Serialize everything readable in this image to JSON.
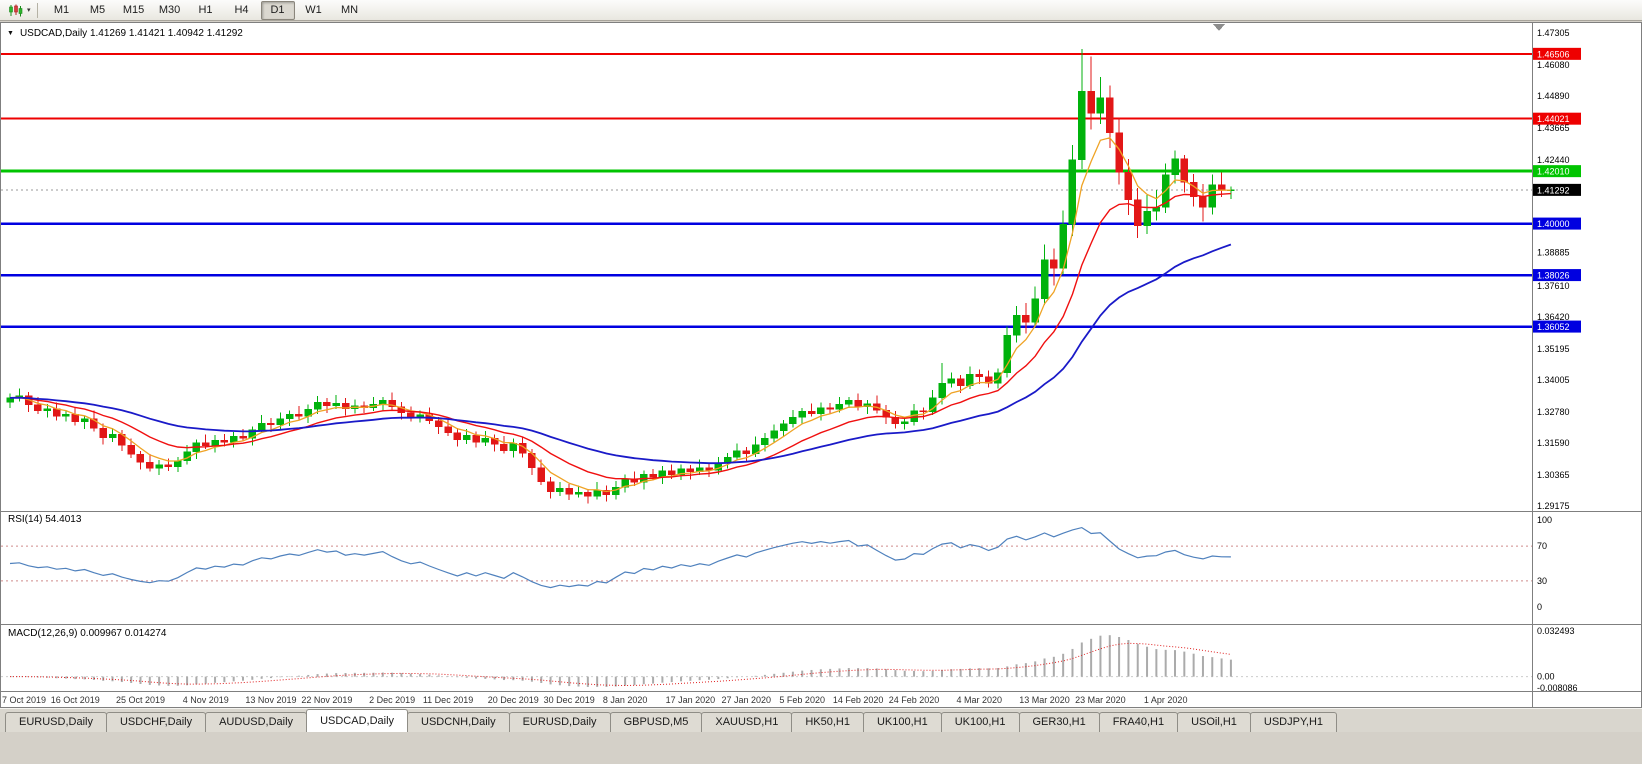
{
  "toolbar": {
    "timeframes": [
      {
        "label": "M1",
        "active": false
      },
      {
        "label": "M5",
        "active": false
      },
      {
        "label": "M15",
        "active": false
      },
      {
        "label": "M30",
        "active": false
      },
      {
        "label": "H1",
        "active": false
      },
      {
        "label": "H4",
        "active": false
      },
      {
        "label": "D1",
        "active": true
      },
      {
        "label": "W1",
        "active": false
      },
      {
        "label": "MN",
        "active": false
      }
    ]
  },
  "tabs": [
    {
      "label": "EURUSD,Daily",
      "active": false
    },
    {
      "label": "USDCHF,Daily",
      "active": false
    },
    {
      "label": "AUDUSD,Daily",
      "active": false
    },
    {
      "label": "USDCAD,Daily",
      "active": true
    },
    {
      "label": "USDCNH,Daily",
      "active": false
    },
    {
      "label": "EURUSD,Daily",
      "active": false
    },
    {
      "label": "GBPUSD,M5",
      "active": false
    },
    {
      "label": "XAUUSD,H1",
      "active": false
    },
    {
      "label": "HK50,H1",
      "active": false
    },
    {
      "label": "UK100,H1",
      "active": false
    },
    {
      "label": "UK100,H1",
      "active": false
    },
    {
      "label": "GER30,H1",
      "active": false
    },
    {
      "label": "FRA40,H1",
      "active": false
    },
    {
      "label": "USOil,H1",
      "active": false
    },
    {
      "label": "USDJPY,H1",
      "active": false
    }
  ],
  "chart_data": {
    "type": "candlestick",
    "symbol": "USDCAD",
    "period": "Daily",
    "header": "USDCAD,Daily  1.41269 1.41421 1.40942 1.41292",
    "last_bar": {
      "open": "1.41269",
      "high": "1.41421",
      "low": "1.40942",
      "close": "1.41292"
    },
    "current_price": {
      "value": 1.41292,
      "text": "1.41292"
    },
    "y_axis": {
      "visible_max": 1.4756,
      "visible_min": 1.2898,
      "labels": [
        {
          "text": "1.47305",
          "type": "plain"
        },
        {
          "text": "1.46506",
          "type": "red"
        },
        {
          "text": "1.46080",
          "type": "plain"
        },
        {
          "text": "1.44890",
          "type": "plain"
        },
        {
          "text": "1.44021",
          "type": "red"
        },
        {
          "text": "1.43665",
          "type": "plain"
        },
        {
          "text": "1.42440",
          "type": "plain"
        },
        {
          "text": "1.42010",
          "type": "green"
        },
        {
          "text": "1.41292",
          "type": "black"
        },
        {
          "text": "1.40000",
          "type": "blue"
        },
        {
          "text": "1.38885",
          "type": "plain"
        },
        {
          "text": "1.38026",
          "type": "blue"
        },
        {
          "text": "1.37610",
          "type": "plain"
        },
        {
          "text": "1.36420",
          "type": "plain"
        },
        {
          "text": "1.36052",
          "type": "blue"
        },
        {
          "text": "1.35195",
          "type": "plain"
        },
        {
          "text": "1.34005",
          "type": "plain"
        },
        {
          "text": "1.32780",
          "type": "plain"
        },
        {
          "text": "1.31590",
          "type": "plain"
        },
        {
          "text": "1.30365",
          "type": "plain"
        },
        {
          "text": "1.29175",
          "type": "plain"
        }
      ]
    },
    "horizontal_lines": [
      {
        "price": 1.46506,
        "color_key": "red",
        "width": 2
      },
      {
        "price": 1.44021,
        "color_key": "red",
        "width": 2
      },
      {
        "price": 1.4201,
        "color_key": "green",
        "width": 3
      },
      {
        "price": 1.4,
        "color_key": "blue",
        "width": 2.5
      },
      {
        "price": 1.38026,
        "color_key": "blue",
        "width": 2.5
      },
      {
        "price": 1.36052,
        "color_key": "blue",
        "width": 2.5
      }
    ],
    "x_labels": [
      {
        "index": 0,
        "label": "7 Oct 2019"
      },
      {
        "index": 7,
        "label": "16 Oct 2019"
      },
      {
        "index": 14,
        "label": "25 Oct 2019"
      },
      {
        "index": 21,
        "label": "4 Nov 2019"
      },
      {
        "index": 28,
        "label": "13 Nov 2019"
      },
      {
        "index": 34,
        "label": "22 Nov 2019"
      },
      {
        "index": 41,
        "label": "2 Dec 2019"
      },
      {
        "index": 47,
        "label": "11 Dec 2019"
      },
      {
        "index": 54,
        "label": "20 Dec 2019"
      },
      {
        "index": 60,
        "label": "30 Dec 2019"
      },
      {
        "index": 66,
        "label": "8 Jan 2020"
      },
      {
        "index": 73,
        "label": "17 Jan 2020"
      },
      {
        "index": 79,
        "label": "27 Jan 2020"
      },
      {
        "index": 85,
        "label": "5 Feb 2020"
      },
      {
        "index": 91,
        "label": "14 Feb 2020"
      },
      {
        "index": 97,
        "label": "24 Feb 2020"
      },
      {
        "index": 104,
        "label": "4 Mar 2020"
      },
      {
        "index": 111,
        "label": "13 Mar 2020"
      },
      {
        "index": 117,
        "label": "23 Mar 2020"
      },
      {
        "index": 124,
        "label": "1 Apr 2020"
      }
    ],
    "moving_averages": [
      {
        "name": "ma-fast",
        "period": 5,
        "color": "#EFA325",
        "width": 1.3
      },
      {
        "name": "ma-medium",
        "period": 13,
        "color": "#F01010",
        "width": 1.4
      },
      {
        "name": "ma-slow",
        "period": 34,
        "color": "#1A1AC8",
        "width": 1.8
      }
    ],
    "indicators": {
      "rsi": {
        "label": "RSI(14) 54.4013",
        "period": 14,
        "levels": [
          100,
          70,
          30,
          0
        ],
        "line_color": "#4f81bd",
        "level_color": "#cf8a8a"
      },
      "macd": {
        "label": "MACD(12,26,9) 0.009967 0.014274",
        "fast": 12,
        "slow": 26,
        "signal_period": 9,
        "scale_max": 0.032493,
        "scale_min": -0.008086,
        "axis_labels": [
          {
            "text": "0.032493",
            "value": 0.032493
          },
          {
            "text": "0.00",
            "value": 0
          },
          {
            "text": "-0.008086",
            "value": -0.008086
          }
        ],
        "histogram_color": "#ababab",
        "signal_color": "#e02020"
      }
    },
    "style": {
      "up": "#00B20C",
      "down": "#E21717",
      "badge_colors": {
        "red": "#EE0000",
        "green": "#00C400",
        "blue": "#0000E0",
        "black": "#000000"
      },
      "current_price_line": "#9a9a9a"
    },
    "candles": [
      [
        1.3315,
        1.3348,
        1.3294,
        1.3332
      ],
      [
        1.3332,
        1.3368,
        1.3318,
        1.3341
      ],
      [
        1.3341,
        1.3354,
        1.3277,
        1.3305
      ],
      [
        1.3305,
        1.3336,
        1.327,
        1.3282
      ],
      [
        1.3282,
        1.3309,
        1.3256,
        1.329
      ],
      [
        1.329,
        1.3314,
        1.3245,
        1.3262
      ],
      [
        1.3262,
        1.3286,
        1.3241,
        1.327
      ],
      [
        1.327,
        1.3297,
        1.3226,
        1.324
      ],
      [
        1.324,
        1.3265,
        1.3212,
        1.3252
      ],
      [
        1.3252,
        1.3283,
        1.3203,
        1.3215
      ],
      [
        1.3215,
        1.3234,
        1.3154,
        1.318
      ],
      [
        1.318,
        1.3216,
        1.3163,
        1.3192
      ],
      [
        1.3192,
        1.3208,
        1.3129,
        1.315
      ],
      [
        1.315,
        1.3177,
        1.3101,
        1.3115
      ],
      [
        1.3115,
        1.3128,
        1.3057,
        1.3085
      ],
      [
        1.3085,
        1.3116,
        1.305,
        1.3062
      ],
      [
        1.3062,
        1.3094,
        1.3036,
        1.3075
      ],
      [
        1.3075,
        1.3099,
        1.3051,
        1.3068
      ],
      [
        1.3068,
        1.3106,
        1.3047,
        1.309
      ],
      [
        1.309,
        1.3152,
        1.3076,
        1.3125
      ],
      [
        1.3125,
        1.3173,
        1.3097,
        1.316
      ],
      [
        1.316,
        1.3191,
        1.3136,
        1.3148
      ],
      [
        1.3148,
        1.3189,
        1.3122,
        1.317
      ],
      [
        1.317,
        1.3194,
        1.3145,
        1.3162
      ],
      [
        1.3162,
        1.3201,
        1.3141,
        1.3185
      ],
      [
        1.3185,
        1.3212,
        1.3164,
        1.3178
      ],
      [
        1.3178,
        1.3223,
        1.315,
        1.321
      ],
      [
        1.321,
        1.3266,
        1.3198,
        1.3235
      ],
      [
        1.3235,
        1.3254,
        1.3202,
        1.3228
      ],
      [
        1.3228,
        1.3276,
        1.3211,
        1.3252
      ],
      [
        1.3252,
        1.3283,
        1.3224,
        1.327
      ],
      [
        1.327,
        1.3301,
        1.325,
        1.3262
      ],
      [
        1.3262,
        1.3307,
        1.3236,
        1.3288
      ],
      [
        1.3288,
        1.3339,
        1.3271,
        1.3315
      ],
      [
        1.3315,
        1.3331,
        1.3274,
        1.3302
      ],
      [
        1.3302,
        1.3343,
        1.329,
        1.3312
      ],
      [
        1.3312,
        1.3331,
        1.3264,
        1.329
      ],
      [
        1.329,
        1.3326,
        1.3273,
        1.3302
      ],
      [
        1.3302,
        1.3318,
        1.3274,
        1.3295
      ],
      [
        1.3295,
        1.3335,
        1.3281,
        1.3308
      ],
      [
        1.3308,
        1.3335,
        1.328,
        1.3322
      ],
      [
        1.3322,
        1.3353,
        1.3286,
        1.3298
      ],
      [
        1.3298,
        1.3317,
        1.3249,
        1.3275
      ],
      [
        1.3275,
        1.3299,
        1.3241,
        1.3258
      ],
      [
        1.3258,
        1.3284,
        1.3237,
        1.3268
      ],
      [
        1.3268,
        1.3295,
        1.3231,
        1.3245
      ],
      [
        1.3245,
        1.3258,
        1.3194,
        1.3222
      ],
      [
        1.3222,
        1.3253,
        1.3186,
        1.3198
      ],
      [
        1.3198,
        1.3217,
        1.3146,
        1.3172
      ],
      [
        1.3172,
        1.3212,
        1.3155,
        1.3188
      ],
      [
        1.3188,
        1.3204,
        1.3141,
        1.3162
      ],
      [
        1.3162,
        1.3205,
        1.3148,
        1.3178
      ],
      [
        1.3178,
        1.3191,
        1.3127,
        1.3155
      ],
      [
        1.3155,
        1.3186,
        1.3118,
        1.313
      ],
      [
        1.313,
        1.3177,
        1.3104,
        1.3158
      ],
      [
        1.3158,
        1.3182,
        1.3103,
        1.312
      ],
      [
        1.312,
        1.3136,
        1.3037,
        1.3065
      ],
      [
        1.3065,
        1.3096,
        1.2998,
        1.301
      ],
      [
        1.301,
        1.3029,
        1.2946,
        1.2972
      ],
      [
        1.2972,
        1.3009,
        1.2955,
        1.2985
      ],
      [
        1.2985,
        1.3001,
        1.2941,
        1.2962
      ],
      [
        1.2962,
        1.2997,
        1.295,
        1.297
      ],
      [
        1.297,
        1.2983,
        1.2927,
        1.2955
      ],
      [
        1.2955,
        1.3009,
        1.2943,
        1.2978
      ],
      [
        1.2978,
        1.2997,
        1.2934,
        1.296
      ],
      [
        1.296,
        1.3014,
        1.2943,
        1.299
      ],
      [
        1.299,
        1.3038,
        1.2969,
        1.3022
      ],
      [
        1.3022,
        1.3049,
        1.2994,
        1.3008
      ],
      [
        1.3008,
        1.3053,
        1.298,
        1.304
      ],
      [
        1.304,
        1.3059,
        1.3016,
        1.3028
      ],
      [
        1.3028,
        1.3071,
        1.3002,
        1.3052
      ],
      [
        1.3052,
        1.3076,
        1.3021,
        1.3038
      ],
      [
        1.3038,
        1.3076,
        1.3017,
        1.306
      ],
      [
        1.306,
        1.3075,
        1.302,
        1.3048
      ],
      [
        1.3048,
        1.3096,
        1.3036,
        1.3065
      ],
      [
        1.3065,
        1.3084,
        1.3029,
        1.3055
      ],
      [
        1.3055,
        1.3106,
        1.3038,
        1.3082
      ],
      [
        1.3082,
        1.3121,
        1.3061,
        1.3105
      ],
      [
        1.3105,
        1.3157,
        1.3091,
        1.313
      ],
      [
        1.313,
        1.3143,
        1.309,
        1.3118
      ],
      [
        1.3118,
        1.3183,
        1.3106,
        1.3152
      ],
      [
        1.3152,
        1.3197,
        1.3126,
        1.3178
      ],
      [
        1.3178,
        1.3229,
        1.3161,
        1.3205
      ],
      [
        1.3205,
        1.3248,
        1.3184,
        1.3232
      ],
      [
        1.3232,
        1.3285,
        1.3218,
        1.3258
      ],
      [
        1.3258,
        1.3293,
        1.323,
        1.328
      ],
      [
        1.328,
        1.3311,
        1.326,
        1.3272
      ],
      [
        1.3272,
        1.3314,
        1.3246,
        1.3295
      ],
      [
        1.3295,
        1.3312,
        1.3271,
        1.3288
      ],
      [
        1.3288,
        1.3336,
        1.3276,
        1.3308
      ],
      [
        1.3308,
        1.3335,
        1.3294,
        1.3322
      ],
      [
        1.3322,
        1.3349,
        1.3284,
        1.3298
      ],
      [
        1.3298,
        1.3323,
        1.327,
        1.331
      ],
      [
        1.331,
        1.3341,
        1.3273,
        1.3285
      ],
      [
        1.3285,
        1.3304,
        1.3232,
        1.3258
      ],
      [
        1.3258,
        1.3282,
        1.3215,
        1.3232
      ],
      [
        1.3232,
        1.3256,
        1.3211,
        1.324
      ],
      [
        1.324,
        1.3309,
        1.3226,
        1.3282
      ],
      [
        1.3282,
        1.3295,
        1.325,
        1.3278
      ],
      [
        1.3278,
        1.3363,
        1.3266,
        1.3332
      ],
      [
        1.3332,
        1.3465,
        1.3306,
        1.3388
      ],
      [
        1.3388,
        1.343,
        1.3371,
        1.3406
      ],
      [
        1.3406,
        1.3419,
        1.335,
        1.3378
      ],
      [
        1.3378,
        1.3453,
        1.3366,
        1.3422
      ],
      [
        1.3422,
        1.3441,
        1.3386,
        1.3412
      ],
      [
        1.3412,
        1.3436,
        1.3371,
        1.3388
      ],
      [
        1.3388,
        1.3444,
        1.3367,
        1.3428
      ],
      [
        1.3428,
        1.3605,
        1.341,
        1.3572
      ],
      [
        1.3572,
        1.3685,
        1.3545,
        1.3648
      ],
      [
        1.3648,
        1.3695,
        1.3578,
        1.3622
      ],
      [
        1.3622,
        1.3758,
        1.3601,
        1.3712
      ],
      [
        1.3712,
        1.392,
        1.3688,
        1.3862
      ],
      [
        1.3862,
        1.3905,
        1.3762,
        1.3828
      ],
      [
        1.3828,
        1.405,
        1.3805,
        1.3998
      ],
      [
        1.3998,
        1.4302,
        1.3952,
        1.4245
      ],
      [
        1.4245,
        1.4669,
        1.421,
        1.4508
      ],
      [
        1.4508,
        1.464,
        1.436,
        1.4422
      ],
      [
        1.4422,
        1.4562,
        1.4381,
        1.4482
      ],
      [
        1.4482,
        1.453,
        1.429,
        1.4348
      ],
      [
        1.4348,
        1.4405,
        1.415,
        1.4196
      ],
      [
        1.4196,
        1.4248,
        1.4032,
        1.4092
      ],
      [
        1.4092,
        1.4136,
        1.3945,
        1.3992
      ],
      [
        1.3992,
        1.411,
        1.396,
        1.4048
      ],
      [
        1.4048,
        1.4128,
        1.4011,
        1.4062
      ],
      [
        1.4062,
        1.423,
        1.404,
        1.4188
      ],
      [
        1.4188,
        1.428,
        1.4154,
        1.4248
      ],
      [
        1.4248,
        1.4262,
        1.412,
        1.4158
      ],
      [
        1.4158,
        1.419,
        1.4066,
        1.4102
      ],
      [
        1.4102,
        1.4151,
        1.4008,
        1.4062
      ],
      [
        1.4062,
        1.4188,
        1.4035,
        1.4148
      ],
      [
        1.4148,
        1.4196,
        1.4101,
        1.413
      ],
      [
        1.41269,
        1.41421,
        1.40942,
        1.41292
      ]
    ]
  }
}
